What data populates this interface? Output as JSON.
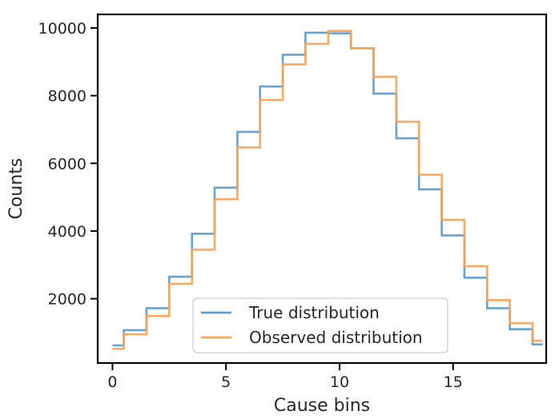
{
  "chart_data": {
    "type": "step",
    "xlabel": "Cause bins",
    "ylabel": "Counts",
    "xlim": [
      -0.65,
      19.1
    ],
    "ylim": [
      100,
      10400
    ],
    "xticks": [
      0,
      5,
      10,
      15
    ],
    "yticks": [
      2000,
      4000,
      6000,
      8000,
      10000
    ],
    "grid": false,
    "legend_position": "bottom-center",
    "bin_edges": [
      0,
      0.5,
      1.5,
      2.5,
      3.5,
      4.5,
      5.5,
      6.5,
      7.5,
      8.5,
      9.5,
      10.5,
      11.5,
      12.5,
      13.5,
      14.5,
      15.5,
      16.5,
      17.5,
      18.5,
      18.95
    ],
    "series": [
      {
        "name": "True distribution",
        "color": "#5b9bcb",
        "values": [
          620,
          1070,
          1720,
          2650,
          3920,
          5280,
          6930,
          8270,
          9210,
          9860,
          9840,
          9400,
          8060,
          6740,
          5230,
          3870,
          2620,
          1720,
          1100,
          650
        ]
      },
      {
        "name": "Observed distribution",
        "color": "#fba34f",
        "values": [
          520,
          950,
          1490,
          2440,
          3450,
          4940,
          6470,
          7870,
          8920,
          9530,
          9910,
          9400,
          8560,
          7230,
          5660,
          4330,
          2960,
          1960,
          1280,
          760
        ]
      }
    ]
  }
}
